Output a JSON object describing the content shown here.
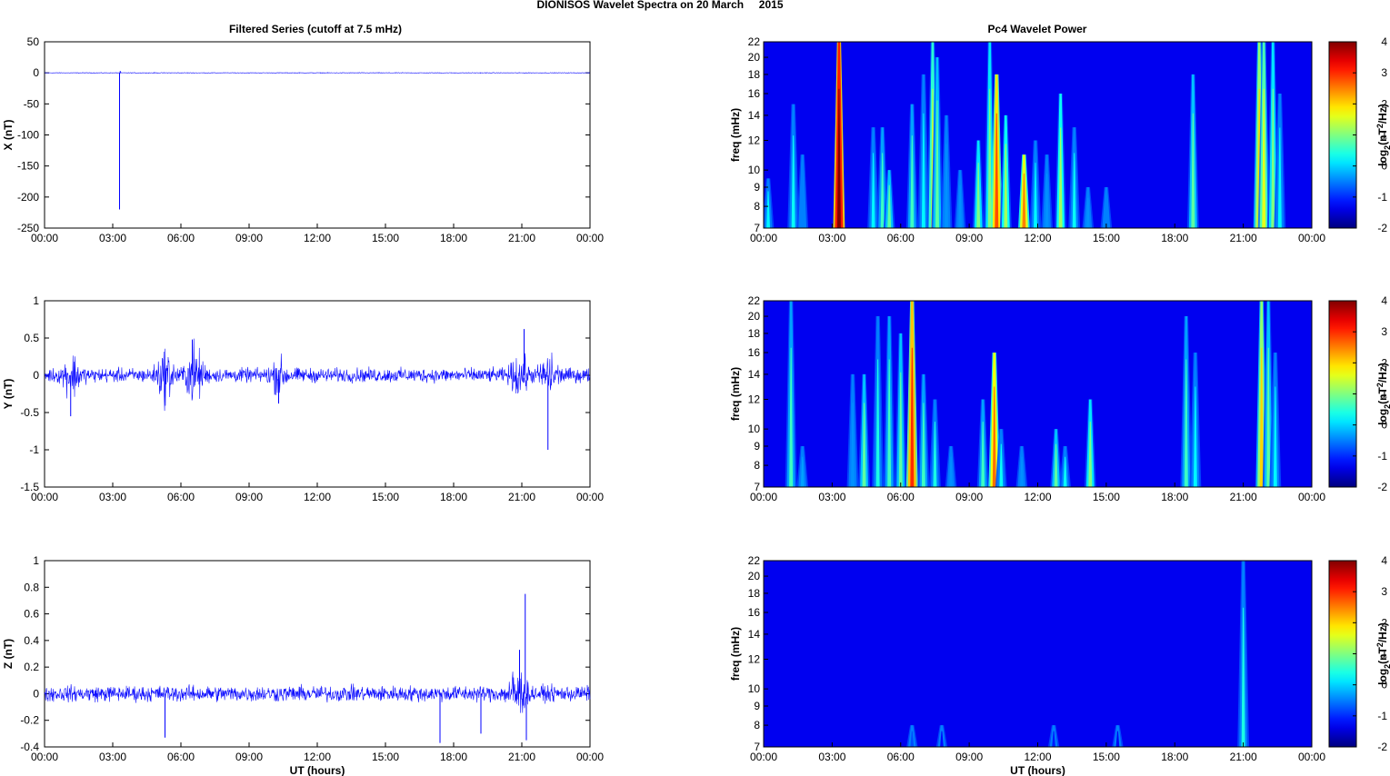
{
  "figure": {
    "title": "DIONISOS Wavelet Spectra on 20 March     2015",
    "left_title": "Filtered Series (cutoff at 7.5 mHz)",
    "right_title": "Pc4 Wavelet Power",
    "xlabel": "UT (hours)",
    "freq_label": "freq (mHz)",
    "colorbar_label": "log2(nT2/Hz)",
    "colorbar_label_parts": {
      "base": "log",
      "sub": "2",
      "open": "(nT",
      "sup": "2",
      "close": "/Hz)"
    },
    "colors": {
      "series": "#0000ff",
      "background": "#ffffff",
      "axis": "#000000"
    },
    "colormap": "jet"
  },
  "chart_data": [
    {
      "type": "line",
      "title": "Filtered Series (cutoff at 7.5 mHz)",
      "ylabel": "X (nT)",
      "xlabel": "",
      "x_unit": "hours UT",
      "xlim": [
        0,
        24
      ],
      "xticks": [
        "00:00",
        "03:00",
        "06:00",
        "09:00",
        "12:00",
        "15:00",
        "18:00",
        "21:00",
        "00:00"
      ],
      "ylim": [
        -250,
        50
      ],
      "yticks": [
        "50",
        "0",
        "-50",
        "-100",
        "-150",
        "-200",
        "-250"
      ],
      "ytick_values": [
        50,
        0,
        -50,
        -100,
        -150,
        -200,
        -250
      ],
      "series": [
        {
          "noise_amplitude": 0.4,
          "spikes": [
            {
              "x": 3.3,
              "y": -220
            },
            {
              "x": 3.33,
              "y": 3
            }
          ]
        }
      ]
    },
    {
      "type": "line",
      "ylabel": "Y (nT)",
      "xlabel": "",
      "x_unit": "hours UT",
      "xlim": [
        0,
        24
      ],
      "xticks": [
        "00:00",
        "03:00",
        "06:00",
        "09:00",
        "12:00",
        "15:00",
        "18:00",
        "21:00",
        "00:00"
      ],
      "ylim": [
        -1.5,
        1
      ],
      "yticks": [
        "1",
        "0.5",
        "0",
        "-0.5",
        "-1",
        "-1.5"
      ],
      "ytick_values": [
        1,
        0.5,
        0,
        -0.5,
        -1,
        -1.5
      ],
      "series": [
        {
          "noise_amplitude": 0.08,
          "bursts": [
            {
              "x": 1.2,
              "a": 0.2
            },
            {
              "x": 5.3,
              "a": 0.25
            },
            {
              "x": 6.6,
              "a": 0.3
            },
            {
              "x": 10.3,
              "a": 0.15
            },
            {
              "x": 20.9,
              "a": 0.2
            },
            {
              "x": 22.2,
              "a": 0.22
            }
          ],
          "spikes": [
            {
              "x": 1.15,
              "y": -0.55
            },
            {
              "x": 6.5,
              "y": 0.48
            },
            {
              "x": 21.1,
              "y": 0.62
            },
            {
              "x": 22.15,
              "y": -1.0
            },
            {
              "x": 10.3,
              "y": -0.38
            }
          ]
        }
      ]
    },
    {
      "type": "line",
      "ylabel": "Z (nT)",
      "xlabel": "UT (hours)",
      "x_unit": "hours UT",
      "xlim": [
        0,
        24
      ],
      "xticks": [
        "00:00",
        "03:00",
        "06:00",
        "09:00",
        "12:00",
        "15:00",
        "18:00",
        "21:00",
        "00:00"
      ],
      "ylim": [
        -0.4,
        1
      ],
      "yticks": [
        "1",
        "0.8",
        "0.6",
        "0.4",
        "0.2",
        "0",
        "-0.2",
        "-0.4"
      ],
      "ytick_values": [
        1,
        0.8,
        0.6,
        0.4,
        0.2,
        0,
        -0.2,
        -0.4
      ],
      "series": [
        {
          "noise_amplitude": 0.05,
          "bursts": [
            {
              "x": 20.8,
              "a": 0.15
            }
          ],
          "spikes": [
            {
              "x": 21.15,
              "y": 0.75
            },
            {
              "x": 5.3,
              "y": -0.33
            },
            {
              "x": 17.4,
              "y": -0.37
            },
            {
              "x": 21.2,
              "y": -0.35
            },
            {
              "x": 19.2,
              "y": -0.3
            },
            {
              "x": 20.9,
              "y": 0.33
            }
          ]
        }
      ]
    },
    {
      "type": "heatmap",
      "title": "Pc4 Wavelet Power",
      "ylabel": "freq (mHz)",
      "xlabel": "",
      "xlim": [
        0,
        24
      ],
      "xticks": [
        "00:00",
        "03:00",
        "06:00",
        "09:00",
        "12:00",
        "15:00",
        "18:00",
        "21:00",
        "00:00"
      ],
      "ylim": [
        7,
        22
      ],
      "yscale": "log",
      "yticks": [
        "22",
        "20",
        "18",
        "16",
        "14",
        "12",
        "10",
        "9",
        "8",
        "7"
      ],
      "ytick_values": [
        22,
        20,
        18,
        16,
        14,
        12,
        10,
        9,
        8,
        7
      ],
      "clim": [
        -2,
        4
      ],
      "cbar_ticks": [
        "4",
        "3",
        "2",
        "1",
        "0",
        "-1",
        "-2"
      ],
      "background_level": -2,
      "streaks": [
        {
          "t": 0.2,
          "top": 9.5,
          "p": 0.2
        },
        {
          "t": 1.3,
          "top": 15,
          "p": 0.3
        },
        {
          "t": 1.7,
          "top": 11,
          "p": -0.5
        },
        {
          "t": 3.3,
          "top": 22,
          "p": 4
        },
        {
          "t": 4.8,
          "top": 13,
          "p": 0.2
        },
        {
          "t": 5.2,
          "top": 13,
          "p": 0.6
        },
        {
          "t": 5.5,
          "top": 10,
          "p": 0.8
        },
        {
          "t": 6.5,
          "top": 15,
          "p": 0.6
        },
        {
          "t": 7.0,
          "top": 18,
          "p": 0.2
        },
        {
          "t": 7.4,
          "top": 22,
          "p": 1.4
        },
        {
          "t": 7.6,
          "top": 20,
          "p": 0.8
        },
        {
          "t": 8.0,
          "top": 14,
          "p": -0.4
        },
        {
          "t": 8.6,
          "top": 10,
          "p": -0.4
        },
        {
          "t": 9.4,
          "top": 12,
          "p": 1.0
        },
        {
          "t": 9.9,
          "top": 22,
          "p": 1.0
        },
        {
          "t": 10.2,
          "top": 18,
          "p": 2.8
        },
        {
          "t": 10.6,
          "top": 14,
          "p": 1.2
        },
        {
          "t": 11.4,
          "top": 11,
          "p": 2.5
        },
        {
          "t": 11.9,
          "top": 12,
          "p": 0.2
        },
        {
          "t": 12.4,
          "top": 11,
          "p": -0.4
        },
        {
          "t": 13.0,
          "top": 16,
          "p": 1.2
        },
        {
          "t": 13.6,
          "top": 13,
          "p": 0.3
        },
        {
          "t": 14.2,
          "top": 9,
          "p": -0.4
        },
        {
          "t": 15.0,
          "top": 9,
          "p": -0.5
        },
        {
          "t": 18.8,
          "top": 18,
          "p": 0.8
        },
        {
          "t": 21.7,
          "top": 22,
          "p": 2.0
        },
        {
          "t": 21.9,
          "top": 22,
          "p": 1.6
        },
        {
          "t": 22.3,
          "top": 22,
          "p": 1.0
        },
        {
          "t": 22.6,
          "top": 16,
          "p": 0.2
        }
      ]
    },
    {
      "type": "heatmap",
      "ylabel": "freq (mHz)",
      "xlabel": "",
      "xlim": [
        0,
        24
      ],
      "xticks": [
        "00:00",
        "03:00",
        "06:00",
        "09:00",
        "12:00",
        "15:00",
        "18:00",
        "21:00",
        "00:00"
      ],
      "ylim": [
        7,
        22
      ],
      "yscale": "log",
      "yticks": [
        "22",
        "20",
        "18",
        "16",
        "14",
        "12",
        "10",
        "9",
        "8",
        "7"
      ],
      "ytick_values": [
        22,
        20,
        18,
        16,
        14,
        12,
        10,
        9,
        8,
        7
      ],
      "clim": [
        -2,
        4
      ],
      "cbar_ticks": [
        "4",
        "3",
        "2",
        "1",
        "0",
        "-1",
        "-2"
      ],
      "background_level": -2,
      "streaks": [
        {
          "t": 1.2,
          "top": 22,
          "p": 0.6
        },
        {
          "t": 1.7,
          "top": 9,
          "p": -0.3
        },
        {
          "t": 3.9,
          "top": 14,
          "p": -0.4
        },
        {
          "t": 4.4,
          "top": 14,
          "p": 0.8
        },
        {
          "t": 5.0,
          "top": 20,
          "p": 0.4
        },
        {
          "t": 5.5,
          "top": 20,
          "p": 0.6
        },
        {
          "t": 6.0,
          "top": 18,
          "p": 0.8
        },
        {
          "t": 6.5,
          "top": 22,
          "p": 3.0
        },
        {
          "t": 7.0,
          "top": 14,
          "p": 0.6
        },
        {
          "t": 7.5,
          "top": 12,
          "p": 0.4
        },
        {
          "t": 8.2,
          "top": 9,
          "p": -0.4
        },
        {
          "t": 9.6,
          "top": 12,
          "p": 0.6
        },
        {
          "t": 10.1,
          "top": 16,
          "p": 2.6
        },
        {
          "t": 10.4,
          "top": 10,
          "p": 0.3
        },
        {
          "t": 11.3,
          "top": 9,
          "p": -0.4
        },
        {
          "t": 12.8,
          "top": 10,
          "p": 0.8
        },
        {
          "t": 13.2,
          "top": 9,
          "p": 0.3
        },
        {
          "t": 14.3,
          "top": 12,
          "p": 1.0
        },
        {
          "t": 18.5,
          "top": 20,
          "p": 0.6
        },
        {
          "t": 18.9,
          "top": 16,
          "p": 0.2
        },
        {
          "t": 21.8,
          "top": 22,
          "p": 2.0
        },
        {
          "t": 22.1,
          "top": 22,
          "p": 0.8
        },
        {
          "t": 22.4,
          "top": 16,
          "p": 0.2
        }
      ]
    },
    {
      "type": "heatmap",
      "ylabel": "freq (mHz)",
      "xlabel": "UT (hours)",
      "xlim": [
        0,
        24
      ],
      "xticks": [
        "00:00",
        "03:00",
        "06:00",
        "09:00",
        "12:00",
        "15:00",
        "18:00",
        "21:00",
        "00:00"
      ],
      "ylim": [
        7,
        22
      ],
      "yscale": "log",
      "yticks": [
        "22",
        "20",
        "18",
        "16",
        "14",
        "12",
        "10",
        "9",
        "8",
        "7"
      ],
      "ytick_values": [
        22,
        20,
        18,
        16,
        14,
        12,
        10,
        9,
        8,
        7
      ],
      "clim": [
        -2,
        4
      ],
      "cbar_ticks": [
        "4",
        "3",
        "2",
        "1",
        "0",
        "-1",
        "-2"
      ],
      "background_level": -2,
      "streaks": [
        {
          "t": 6.5,
          "top": 8,
          "p": -0.8
        },
        {
          "t": 7.8,
          "top": 8,
          "p": -1.2
        },
        {
          "t": 12.7,
          "top": 8,
          "p": -1.1
        },
        {
          "t": 15.5,
          "top": 8,
          "p": -1.3
        },
        {
          "t": 21.0,
          "top": 22,
          "p": 0.4
        }
      ]
    }
  ]
}
